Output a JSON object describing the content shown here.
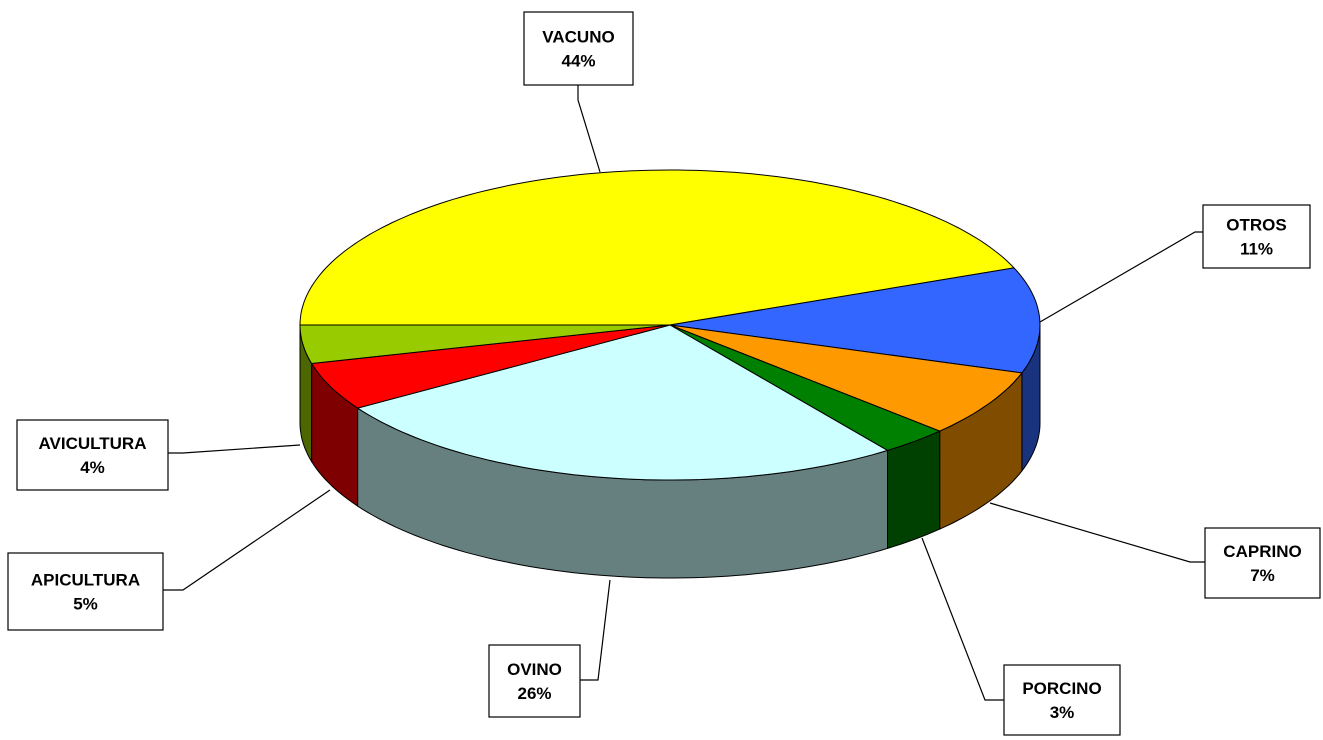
{
  "chart_data": {
    "type": "pie3d",
    "categories": [
      "VACUNO",
      "OTROS",
      "CAPRINO",
      "PORCINO",
      "OVINO",
      "APICULTURA",
      "AVICULTURA"
    ],
    "values": [
      44,
      11,
      7,
      3,
      26,
      5,
      4
    ],
    "value_labels": [
      "44%",
      "11%",
      "7%",
      "3%",
      "26%",
      "5%",
      "4%"
    ],
    "colors": [
      "#ffff00",
      "#3366ff",
      "#ff9900",
      "#008000",
      "#ccffff",
      "#ff0000",
      "#99cc00"
    ]
  }
}
